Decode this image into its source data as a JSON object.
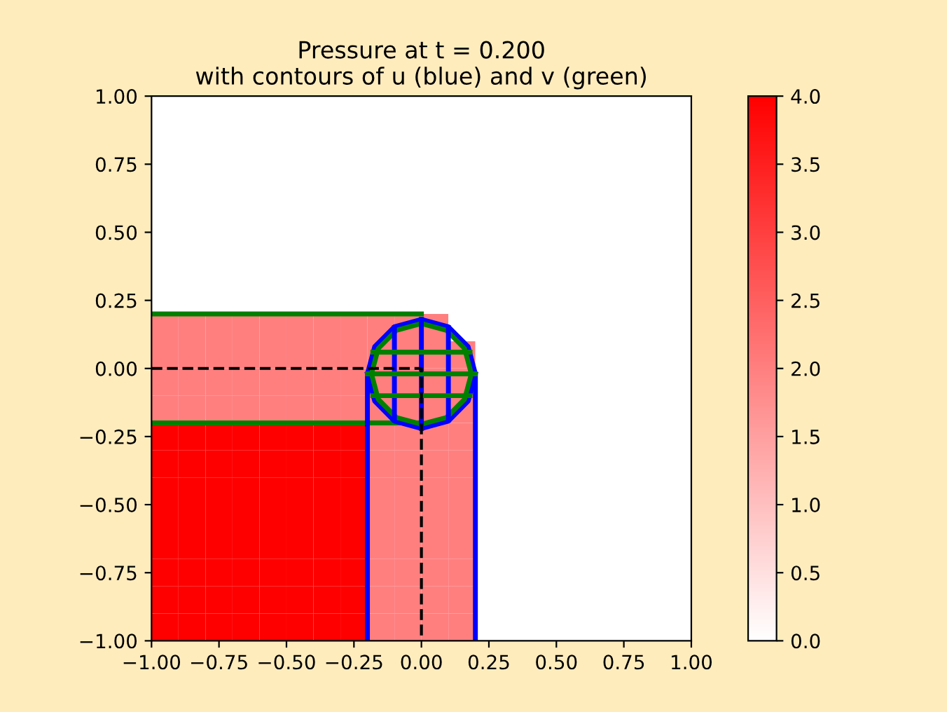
{
  "chart_data": {
    "type": "heatmap",
    "title": "Pressure at t = 0.200\nwith contours of u (blue) and v (green)",
    "xlim": [
      -1,
      1
    ],
    "ylim": [
      -1,
      1
    ],
    "xticks": [
      {
        "value": -1,
        "label": "−1.00"
      },
      {
        "value": -0.75,
        "label": "−0.75"
      },
      {
        "value": -0.5,
        "label": "−0.50"
      },
      {
        "value": -0.25,
        "label": "−0.25"
      },
      {
        "value": 0,
        "label": "0.00"
      },
      {
        "value": 0.25,
        "label": "0.25"
      },
      {
        "value": 0.5,
        "label": "0.50"
      },
      {
        "value": 0.75,
        "label": "0.75"
      },
      {
        "value": 1,
        "label": "1.00"
      }
    ],
    "yticks": [
      {
        "value": -1,
        "label": "−1.00"
      },
      {
        "value": -0.75,
        "label": "−0.75"
      },
      {
        "value": -0.5,
        "label": "−0.50"
      },
      {
        "value": -0.25,
        "label": "−0.25"
      },
      {
        "value": 0,
        "label": "0.00"
      },
      {
        "value": 0.25,
        "label": "0.25"
      },
      {
        "value": 0.5,
        "label": "0.50"
      },
      {
        "value": 0.75,
        "label": "0.75"
      },
      {
        "value": 1,
        "label": "1.00"
      }
    ],
    "clim": [
      0,
      4
    ],
    "cticks": [
      {
        "value": 0,
        "label": "0.0"
      },
      0.5,
      {
        "value": 1,
        "label": "1.0"
      },
      1.5,
      {
        "value": 2,
        "label": "2.0"
      },
      2.5,
      {
        "value": 3,
        "label": "3.0"
      },
      3.5,
      {
        "value": 4,
        "label": "4.0"
      }
    ],
    "cells": [
      [
        0,
        0,
        0,
        0,
        0,
        0,
        0,
        0,
        0,
        0,
        0,
        0,
        0,
        0,
        0,
        0,
        0,
        0,
        0,
        0
      ],
      [
        0,
        0,
        0,
        0,
        0,
        0,
        0,
        0,
        0,
        0,
        0,
        0,
        0,
        0,
        0,
        0,
        0,
        0,
        0,
        0
      ],
      [
        0,
        0,
        0,
        0,
        0,
        0,
        0,
        0,
        0,
        0,
        0,
        0,
        0,
        0,
        0,
        0,
        0,
        0,
        0,
        0
      ],
      [
        0,
        0,
        0,
        0,
        0,
        0,
        0,
        0,
        0,
        0,
        0,
        0,
        0,
        0,
        0,
        0,
        0,
        0,
        0,
        0
      ],
      [
        0,
        0,
        0,
        0,
        0,
        0,
        0,
        0,
        0,
        0,
        0,
        0,
        0,
        0,
        0,
        0,
        0,
        0,
        0,
        0
      ],
      [
        0,
        0,
        0,
        0,
        0,
        0,
        0,
        0,
        0,
        0,
        0,
        0,
        0,
        0,
        0,
        0,
        0,
        0,
        0,
        0
      ],
      [
        0,
        0,
        0,
        0,
        0,
        0,
        0,
        0,
        0,
        0,
        0,
        0,
        0,
        0,
        0,
        0,
        0,
        0,
        0,
        0
      ],
      [
        0,
        0,
        0,
        0,
        0,
        0,
        0,
        0,
        0,
        0,
        0,
        0,
        0,
        0,
        0,
        0,
        0,
        0,
        0,
        0
      ],
      [
        2,
        2,
        2,
        2,
        2,
        2,
        2,
        2,
        2,
        2,
        2,
        0,
        0,
        0,
        0,
        0,
        0,
        0,
        0,
        0
      ],
      [
        2,
        2,
        2,
        2,
        2,
        2,
        2,
        2,
        2,
        2,
        2,
        2,
        0,
        0,
        0,
        0,
        0,
        0,
        0,
        0
      ],
      [
        2,
        2,
        2,
        2,
        2,
        2,
        2,
        2,
        2,
        2,
        2,
        2,
        0,
        0,
        0,
        0,
        0,
        0,
        0,
        0
      ],
      [
        2,
        2,
        2,
        2,
        2,
        2,
        2,
        2,
        2,
        2,
        2,
        2,
        0,
        0,
        0,
        0,
        0,
        0,
        0,
        0
      ],
      [
        4,
        4,
        4,
        4,
        4,
        4,
        4,
        4,
        2,
        2,
        2,
        2,
        0,
        0,
        0,
        0,
        0,
        0,
        0,
        0
      ],
      [
        4,
        4,
        4,
        4,
        4,
        4,
        4,
        4,
        2,
        2,
        2,
        2,
        0,
        0,
        0,
        0,
        0,
        0,
        0,
        0
      ],
      [
        4,
        4,
        4,
        4,
        4,
        4,
        4,
        4,
        2,
        2,
        2,
        2,
        0,
        0,
        0,
        0,
        0,
        0,
        0,
        0
      ],
      [
        4,
        4,
        4,
        4,
        4,
        4,
        4,
        4,
        2,
        2,
        2,
        2,
        0,
        0,
        0,
        0,
        0,
        0,
        0,
        0
      ],
      [
        4,
        4,
        4,
        4,
        4,
        4,
        4,
        4,
        2,
        2,
        2,
        2,
        0,
        0,
        0,
        0,
        0,
        0,
        0,
        0
      ],
      [
        4,
        4,
        4,
        4,
        4,
        4,
        4,
        4,
        2,
        2,
        2,
        2,
        0,
        0,
        0,
        0,
        0,
        0,
        0,
        0
      ],
      [
        4,
        4,
        4,
        4,
        4,
        4,
        4,
        4,
        2,
        2,
        2,
        2,
        0,
        0,
        0,
        0,
        0,
        0,
        0,
        0
      ],
      [
        4,
        4,
        4,
        4,
        4,
        4,
        4,
        4,
        2,
        2,
        2,
        2,
        0,
        0,
        0,
        0,
        0,
        0,
        0,
        0
      ]
    ],
    "series": [
      {
        "type": "line",
        "color": "#008000",
        "x": [
          -1,
          0
        ],
        "values": [
          0.2,
          0.2
        ]
      },
      {
        "type": "line",
        "color": "#008000",
        "x": [
          -1,
          0
        ],
        "values": [
          -0.2,
          -0.2
        ]
      },
      {
        "type": "line",
        "color": "#0000ff",
        "x": [
          -0.2,
          -0.2,
          -0.173,
          -0.1,
          0,
          0.1,
          0.173,
          0.2,
          0.2
        ],
        "values": [
          -1,
          -0.02,
          0.08,
          0.153,
          0.18,
          0.153,
          0.08,
          -0.02,
          -1
        ]
      },
      {
        "type": "line",
        "color": "#0000ff",
        "x": [
          -0.2,
          -0.173,
          -0.1,
          0,
          0.1,
          0.173,
          0.2
        ],
        "values": [
          -0.02,
          -0.12,
          -0.193,
          -0.22,
          -0.193,
          -0.12,
          -0.02
        ]
      },
      {
        "type": "line",
        "color": "#008000",
        "x": [
          -0.185,
          -0.16,
          -0.093,
          0,
          0.093,
          0.16,
          0.185
        ],
        "values": [
          -0.02,
          0.073,
          0.14,
          0.165,
          0.14,
          0.073,
          -0.02
        ]
      },
      {
        "type": "line",
        "color": "#008000",
        "x": [
          -0.185,
          -0.16,
          -0.093,
          0,
          0.093,
          0.16,
          0.185
        ],
        "values": [
          -0.02,
          -0.113,
          -0.18,
          -0.205,
          -0.18,
          -0.113,
          -0.02
        ]
      },
      {
        "type": "line",
        "color": "#0000ff",
        "x": [
          -0.1,
          -0.1
        ],
        "values": [
          -0.19,
          0.15
        ]
      },
      {
        "type": "line",
        "color": "#0000ff",
        "x": [
          0,
          0
        ],
        "values": [
          -0.22,
          0.18
        ]
      },
      {
        "type": "line",
        "color": "#0000ff",
        "x": [
          0.1,
          0.1
        ],
        "values": [
          -0.19,
          0.15
        ]
      },
      {
        "type": "line",
        "color": "#008000",
        "x": [
          -0.18,
          0.18
        ],
        "values": [
          -0.1,
          -0.1
        ]
      },
      {
        "type": "line",
        "color": "#008000",
        "x": [
          -0.2,
          0.2
        ],
        "values": [
          -0.02,
          -0.02
        ]
      },
      {
        "type": "line",
        "color": "#008000",
        "x": [
          -0.18,
          0.18
        ],
        "values": [
          0.06,
          0.06
        ]
      },
      {
        "type": "line",
        "color": "#000000",
        "line_style": "dashed",
        "x": [
          -1,
          0,
          0
        ],
        "values": [
          0,
          0,
          -1
        ]
      }
    ]
  }
}
